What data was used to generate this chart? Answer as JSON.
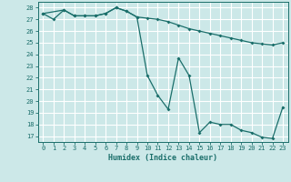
{
  "xlabel": "Humidex (Indice chaleur)",
  "background_color": "#cce8e8",
  "line_color": "#1a6e6a",
  "grid_color": "#ffffff",
  "xlim": [
    -0.5,
    23.5
  ],
  "ylim": [
    16.5,
    28.5
  ],
  "xticks": [
    0,
    1,
    2,
    3,
    4,
    5,
    6,
    7,
    8,
    9,
    10,
    11,
    12,
    13,
    14,
    15,
    16,
    17,
    18,
    19,
    20,
    21,
    22,
    23
  ],
  "yticks": [
    17,
    18,
    19,
    20,
    21,
    22,
    23,
    24,
    25,
    26,
    27,
    28
  ],
  "line1_x": [
    0,
    2,
    3,
    4,
    5,
    6,
    7,
    8,
    9,
    10,
    11,
    12,
    13,
    14,
    15,
    16,
    17,
    18,
    19,
    20,
    21,
    22,
    23
  ],
  "line1_y": [
    27.5,
    27.8,
    27.3,
    27.3,
    27.3,
    27.5,
    28.0,
    27.7,
    27.2,
    27.1,
    27.0,
    26.8,
    26.5,
    26.2,
    26.0,
    25.8,
    25.6,
    25.4,
    25.2,
    25.0,
    24.9,
    24.8,
    25.0
  ],
  "line2_x": [
    0,
    1,
    2,
    3,
    4,
    5,
    6,
    7,
    8,
    9,
    10,
    11,
    12,
    13,
    14,
    15,
    16,
    17,
    18,
    19,
    20,
    21,
    22,
    23
  ],
  "line2_y": [
    27.5,
    27.0,
    27.8,
    27.3,
    27.3,
    27.3,
    27.5,
    28.0,
    27.7,
    27.2,
    22.2,
    20.5,
    19.3,
    23.7,
    22.2,
    17.3,
    18.2,
    18.0,
    18.0,
    17.5,
    17.3,
    16.9,
    16.8,
    19.5
  ]
}
